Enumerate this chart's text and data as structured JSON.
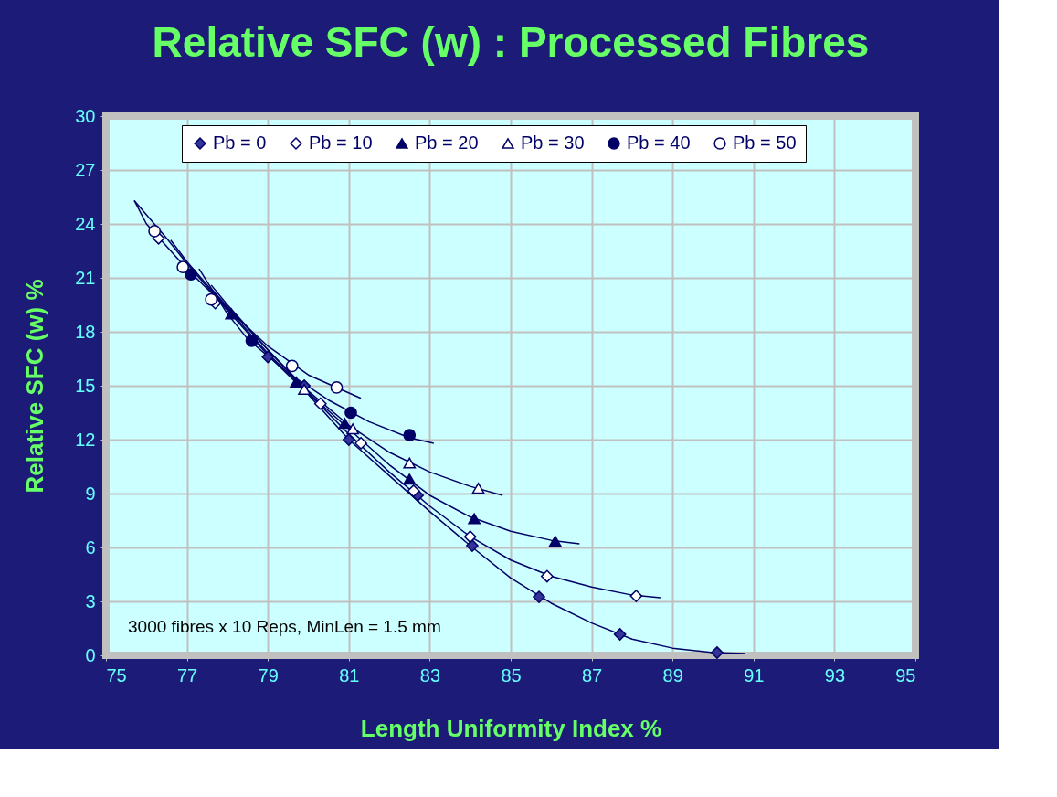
{
  "chart_data": {
    "type": "scatter",
    "title": "Relative SFC (w) : Processed Fibres",
    "xlabel": "Length Uniformity Index  %",
    "ylabel": "Relative SFC (w)  %",
    "xlim": [
      75,
      95
    ],
    "xticks": [
      75,
      77,
      79,
      81,
      83,
      85,
      87,
      89,
      91,
      93,
      95
    ],
    "ylim": [
      0,
      30
    ],
    "yticks": [
      0,
      3,
      6,
      9,
      12,
      15,
      18,
      21,
      24,
      27,
      30
    ],
    "grid": true,
    "legend": "top",
    "line_style": "solid",
    "annotations": [
      "3000 fibres x 10 Reps,  MinLen = 1.5 mm"
    ],
    "series": [
      {
        "name": "Pb = 0",
        "marker": "diamond",
        "color": "#333399",
        "x": [
          79.0,
          79.9,
          81.0,
          82.7,
          84.05,
          85.7,
          87.7,
          90.1
        ],
        "values": [
          16.6,
          15.0,
          12.0,
          8.9,
          6.1,
          3.25,
          1.17,
          0.15
        ]
      },
      {
        "name": "Pb = 10",
        "marker": "diamond",
        "color": "#ffffff",
        "x": [
          76.3,
          77.7,
          78.6,
          80.3,
          81.3,
          82.6,
          84.0,
          85.9,
          88.1
        ],
        "values": [
          23.2,
          19.6,
          null,
          14.0,
          11.8,
          9.15,
          6.6,
          4.4,
          3.3
        ]
      },
      {
        "name": "Pb = 20",
        "marker": "triangle",
        "color": "#000066",
        "x": [
          78.1,
          79.7,
          80.9,
          82.5,
          84.1,
          86.1
        ],
        "values": [
          19.0,
          15.2,
          12.9,
          9.8,
          7.6,
          6.35
        ]
      },
      {
        "name": "Pb = 30",
        "marker": "triangle",
        "color": "#ffffff",
        "x": [
          79.9,
          81.1,
          82.5,
          84.2
        ],
        "values": [
          14.8,
          12.6,
          10.7,
          9.3
        ]
      },
      {
        "name": "Pb = 40",
        "marker": "circle",
        "color": "#000066",
        "x": [
          77.1,
          78.6,
          81.05,
          82.5
        ],
        "values": [
          21.2,
          17.5,
          13.5,
          12.25
        ]
      },
      {
        "name": "Pb = 50",
        "marker": "circle",
        "color": "#ffffff",
        "x": [
          76.2,
          76.9,
          77.6,
          79.6,
          80.7
        ],
        "values": [
          23.6,
          21.6,
          19.8,
          16.1,
          14.9
        ]
      },
      {
        "type": "line",
        "color": "#000066",
        "x": [
          75.7,
          76.5,
          77,
          78,
          79,
          80,
          81,
          82,
          83,
          84,
          85,
          86,
          87,
          88,
          89,
          90,
          90.8
        ],
        "values": [
          25.3,
          23.2,
          21.8,
          19.2,
          16.7,
          14.5,
          12.0,
          10.0,
          8.0,
          6.1,
          4.3,
          2.9,
          1.8,
          0.9,
          0.4,
          0.15,
          0.1
        ]
      },
      {
        "type": "line",
        "color": "#000066",
        "x": [
          76.6,
          77,
          78,
          79,
          80,
          81,
          82,
          83,
          84,
          85,
          86,
          87,
          88,
          88.7
        ],
        "values": [
          23.1,
          21.9,
          19.3,
          16.8,
          14.6,
          12.3,
          10.2,
          8.3,
          6.6,
          5.3,
          4.4,
          3.8,
          3.35,
          3.2
        ]
      },
      {
        "type": "line",
        "color": "#000066",
        "x": [
          77.6,
          78,
          79,
          80,
          81,
          82,
          83,
          84,
          85,
          86,
          86.7
        ],
        "values": [
          20.6,
          19.5,
          17.0,
          14.6,
          12.6,
          10.6,
          8.9,
          7.7,
          6.9,
          6.4,
          6.2
        ]
      },
      {
        "type": "line",
        "color": "#000066",
        "x": [
          77.6,
          78,
          79,
          80,
          81,
          82,
          83,
          84,
          84.8
        ],
        "values": [
          20.4,
          19.4,
          17.0,
          14.7,
          12.8,
          11.3,
          10.2,
          9.4,
          8.9
        ]
      },
      {
        "type": "line",
        "color": "#000066",
        "x": [
          77.3,
          78,
          78.5,
          79.5,
          80.5,
          81.5,
          82.5,
          83.1
        ],
        "values": [
          21.5,
          19.0,
          17.6,
          15.7,
          14.2,
          13.0,
          12.1,
          11.8
        ]
      },
      {
        "type": "line",
        "color": "#000066",
        "x": [
          75.7,
          76,
          77,
          78,
          79,
          80,
          80.7,
          81.3
        ],
        "values": [
          25.3,
          24.0,
          21.5,
          19.3,
          17.2,
          15.6,
          14.9,
          14.3
        ]
      }
    ]
  }
}
